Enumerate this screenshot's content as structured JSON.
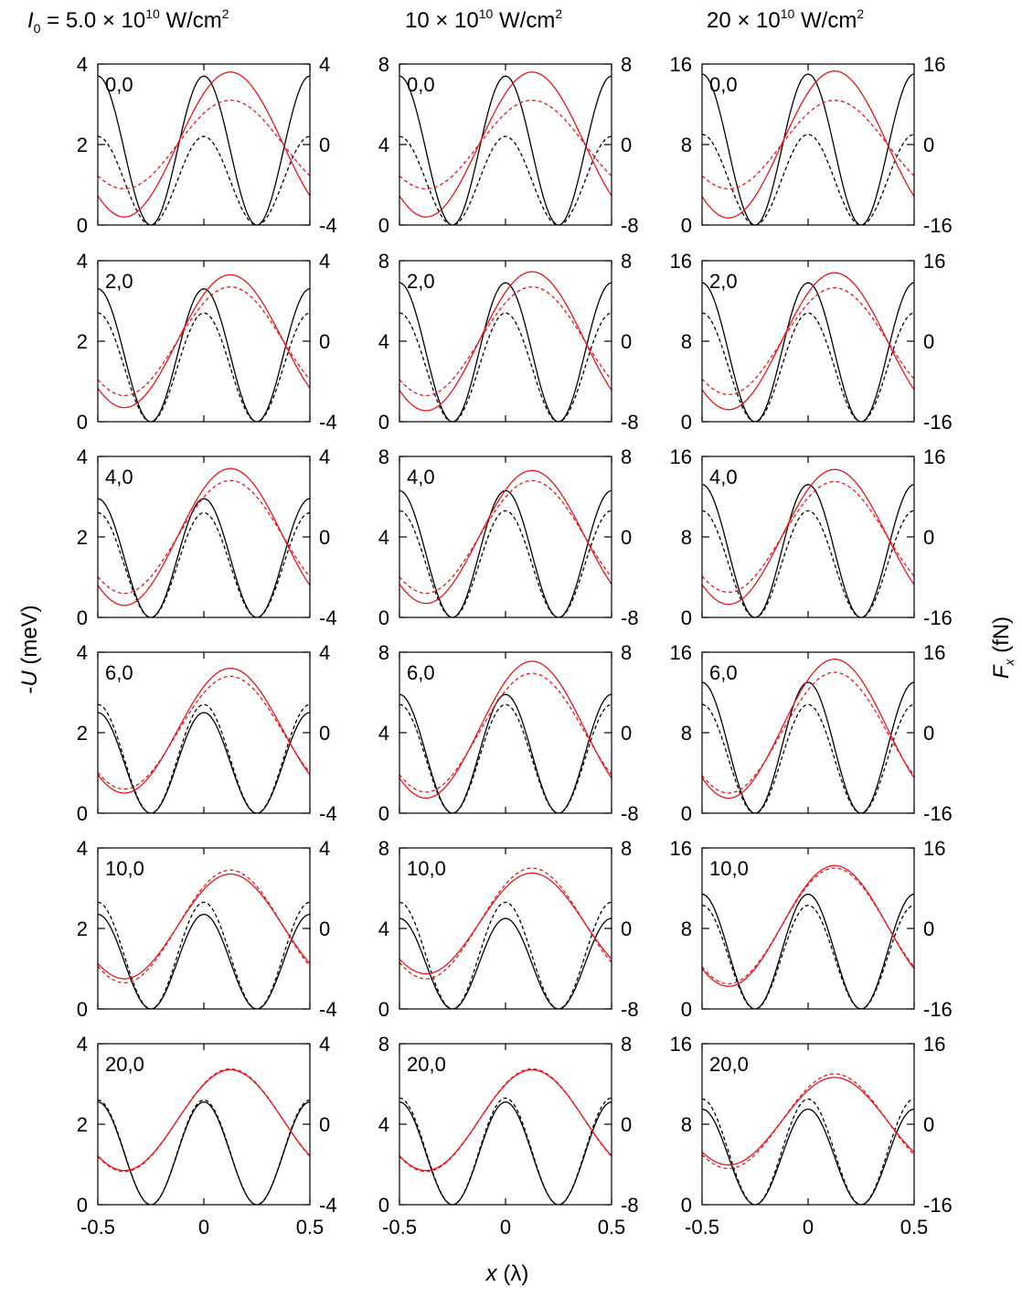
{
  "figure": {
    "column_titles": [
      {
        "prefix": "I",
        "subscript": "0",
        "main": " = 5.0 × 10",
        "sup": "10",
        "unit": " W/cm",
        "unit_sup": "2"
      },
      {
        "prefix": "",
        "subscript": "",
        "main": "10 × 10",
        "sup": "10",
        "unit": " W/cm",
        "unit_sup": "2"
      },
      {
        "prefix": "",
        "subscript": "",
        "main": "20 × 10",
        "sup": "10",
        "unit": " W/cm",
        "unit_sup": "2"
      }
    ],
    "ylabel_left": {
      "minus": "-",
      "var": "U",
      "unit": " (meV)"
    },
    "ylabel_right": {
      "var": "F",
      "subscript": "x",
      "unit": " (fN)"
    },
    "xlabel": {
      "var": "x",
      "unit": " (λ)"
    },
    "x_ticks": [
      "-0.5",
      "0",
      "0.5"
    ]
  },
  "chart_data": {
    "type": "line",
    "panel_grid": {
      "rows": 6,
      "cols": 3
    },
    "xlim": [
      -0.5,
      0.5
    ],
    "x_tick_values": [
      -0.5,
      0,
      0.5
    ],
    "row_labels": [
      "0,0",
      "2,0",
      "4,0",
      "6,0",
      "10,0",
      "20,0"
    ],
    "columns": [
      {
        "left_ylim": [
          0,
          4
        ],
        "left_ticks": [
          "0",
          "2",
          "4"
        ],
        "right_ylim": [
          -4,
          4
        ],
        "right_ticks": [
          "-4",
          "0",
          "4"
        ]
      },
      {
        "left_ylim": [
          0,
          8
        ],
        "left_ticks": [
          "0",
          "4",
          "8"
        ],
        "right_ylim": [
          -8,
          8
        ],
        "right_ticks": [
          "-8",
          "0",
          "8"
        ]
      },
      {
        "left_ylim": [
          0,
          16
        ],
        "left_ticks": [
          "0",
          "8",
          "16"
        ],
        "right_ylim": [
          -16,
          16
        ],
        "right_ticks": [
          "-16",
          "0",
          "16"
        ]
      }
    ],
    "series_styles": {
      "potential_solid": {
        "color": "#000000",
        "dash": "solid",
        "axis": "left"
      },
      "potential_dashed": {
        "color": "#000000",
        "dash": "dashed",
        "axis": "left"
      },
      "force_solid": {
        "color": "#e8141b",
        "dash": "solid",
        "axis": "right"
      },
      "force_dashed": {
        "color": "#e8141b",
        "dash": "dashed",
        "axis": "right"
      }
    },
    "series_shape": "potential = A·cos²(2πx) (minima at x = ±0.25); force = C + F·sin(2π(x−φ)); amplitudes in axis data units",
    "panels": [
      {
        "row": 0,
        "col": 0,
        "pot_solid_amp": 3.7,
        "pot_dash_amp": 2.2,
        "force_solid": {
          "c": 0,
          "amp": 3.6
        },
        "force_dash": {
          "c": 0,
          "amp": 2.2
        }
      },
      {
        "row": 0,
        "col": 1,
        "pot_solid_amp": 7.4,
        "pot_dash_amp": 4.4,
        "force_solid": {
          "c": 0,
          "amp": 7.2
        },
        "force_dash": {
          "c": 0,
          "amp": 4.4
        }
      },
      {
        "row": 0,
        "col": 2,
        "pot_solid_amp": 15.0,
        "pot_dash_amp": 9.0,
        "force_solid": {
          "c": 0,
          "amp": 14.6
        },
        "force_dash": {
          "c": 0,
          "amp": 8.8
        }
      },
      {
        "row": 1,
        "col": 0,
        "pot_solid_amp": 3.3,
        "pot_dash_amp": 2.7,
        "force_solid": {
          "c": 0,
          "amp": 3.3
        },
        "force_dash": {
          "c": 0,
          "amp": 2.7
        }
      },
      {
        "row": 1,
        "col": 1,
        "pot_solid_amp": 6.9,
        "pot_dash_amp": 5.4,
        "force_solid": {
          "c": 0,
          "amp": 6.9
        },
        "force_dash": {
          "c": 0,
          "amp": 5.4
        }
      },
      {
        "row": 1,
        "col": 2,
        "pot_solid_amp": 13.8,
        "pot_dash_amp": 10.8,
        "force_solid": {
          "c": 0,
          "amp": 13.6
        },
        "force_dash": {
          "c": 0,
          "amp": 10.6
        }
      },
      {
        "row": 2,
        "col": 0,
        "pot_solid_amp": 2.95,
        "pot_dash_amp": 2.6,
        "force_solid": {
          "c": 0,
          "amp": 3.4
        },
        "force_dash": {
          "c": 0,
          "amp": 2.8
        }
      },
      {
        "row": 2,
        "col": 1,
        "pot_solid_amp": 6.3,
        "pot_dash_amp": 5.3,
        "force_solid": {
          "c": 0,
          "amp": 6.6
        },
        "force_dash": {
          "c": 0,
          "amp": 5.6
        }
      },
      {
        "row": 2,
        "col": 2,
        "pot_solid_amp": 13.2,
        "pot_dash_amp": 10.6,
        "force_solid": {
          "c": 0,
          "amp": 13.4
        },
        "force_dash": {
          "c": 0,
          "amp": 11.0
        }
      },
      {
        "row": 3,
        "col": 0,
        "pot_solid_amp": 2.5,
        "pot_dash_amp": 2.7,
        "force_solid": {
          "c": 0.1,
          "amp": 3.1
        },
        "force_dash": {
          "c": 0,
          "amp": 2.8
        }
      },
      {
        "row": 3,
        "col": 1,
        "pot_solid_amp": 5.9,
        "pot_dash_amp": 5.4,
        "force_solid": {
          "c": 0.3,
          "amp": 6.8
        },
        "force_dash": {
          "c": 0,
          "amp": 5.9
        }
      },
      {
        "row": 3,
        "col": 2,
        "pot_solid_amp": 13.0,
        "pot_dash_amp": 10.8,
        "force_solid": {
          "c": 0.8,
          "amp": 13.8
        },
        "force_dash": {
          "c": 0,
          "amp": 12.0
        }
      },
      {
        "row": 4,
        "col": 0,
        "pot_solid_amp": 2.35,
        "pot_dash_amp": 2.65,
        "force_solid": {
          "c": 0.1,
          "amp": 2.6
        },
        "force_dash": {
          "c": 0.1,
          "amp": 2.8
        }
      },
      {
        "row": 4,
        "col": 1,
        "pot_solid_amp": 4.5,
        "pot_dash_amp": 5.3,
        "force_solid": {
          "c": 0.5,
          "amp": 5.0
        },
        "force_dash": {
          "c": 0.5,
          "amp": 5.5
        }
      },
      {
        "row": 4,
        "col": 2,
        "pot_solid_amp": 11.4,
        "pot_dash_amp": 10.3,
        "force_solid": {
          "c": 0.5,
          "amp": 12.0
        },
        "force_dash": {
          "c": 0.5,
          "amp": 11.5
        }
      },
      {
        "row": 5,
        "col": 0,
        "pot_solid_amp": 2.55,
        "pot_dash_amp": 2.6,
        "force_solid": {
          "c": 0.2,
          "amp": 2.5
        },
        "force_dash": {
          "c": 0.2,
          "amp": 2.55
        }
      },
      {
        "row": 5,
        "col": 1,
        "pot_solid_amp": 5.1,
        "pot_dash_amp": 5.3,
        "force_solid": {
          "c": 0.4,
          "amp": 5.0
        },
        "force_dash": {
          "c": 0.4,
          "amp": 5.1
        }
      },
      {
        "row": 5,
        "col": 2,
        "pot_solid_amp": 9.5,
        "pot_dash_amp": 10.5,
        "force_solid": {
          "c": 0.6,
          "amp": 8.7
        },
        "force_dash": {
          "c": 0.6,
          "amp": 9.4
        }
      }
    ]
  }
}
